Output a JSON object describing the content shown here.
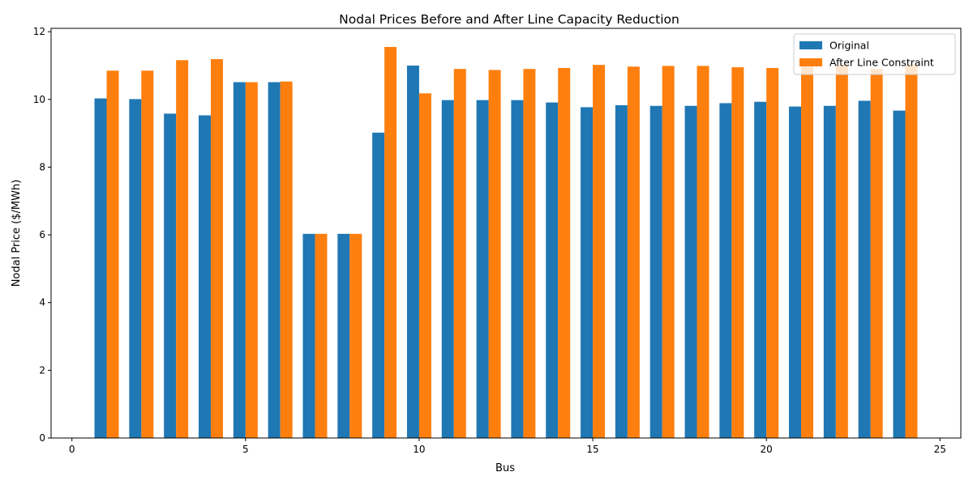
{
  "chart_data": {
    "type": "bar",
    "title": "Nodal Prices Before and After Line Capacity Reduction",
    "xlabel": "Bus",
    "ylabel": "Nodal Price ($/MWh)",
    "xlim": [
      -0.6,
      25.6
    ],
    "ylim": [
      0,
      12.1
    ],
    "xticks": [
      0,
      5,
      10,
      15,
      20,
      25
    ],
    "yticks": [
      0,
      2,
      4,
      6,
      8,
      10,
      12
    ],
    "x": [
      1,
      2,
      3,
      4,
      5,
      6,
      7,
      8,
      9,
      10,
      11,
      12,
      13,
      14,
      15,
      16,
      17,
      18,
      19,
      20,
      21,
      22,
      23,
      24
    ],
    "bar_width": 0.35,
    "series": [
      {
        "name": "Original",
        "color": "#1f77b4",
        "values": [
          10.03,
          10.01,
          9.58,
          9.53,
          10.51,
          10.51,
          6.03,
          6.03,
          9.02,
          11.0,
          9.98,
          9.98,
          9.98,
          9.91,
          9.77,
          9.83,
          9.81,
          9.81,
          9.89,
          9.93,
          9.79,
          9.81,
          9.96,
          9.67
        ]
      },
      {
        "name": "After Line Constraint",
        "color": "#ff7f0e",
        "values": [
          10.85,
          10.85,
          11.16,
          11.19,
          10.51,
          10.53,
          6.03,
          6.03,
          11.55,
          10.18,
          10.9,
          10.87,
          10.9,
          10.93,
          11.02,
          10.97,
          10.99,
          10.99,
          10.95,
          10.93,
          11.02,
          11.02,
          10.9,
          11.02
        ]
      }
    ],
    "legend": "top-right",
    "grid": false
  }
}
